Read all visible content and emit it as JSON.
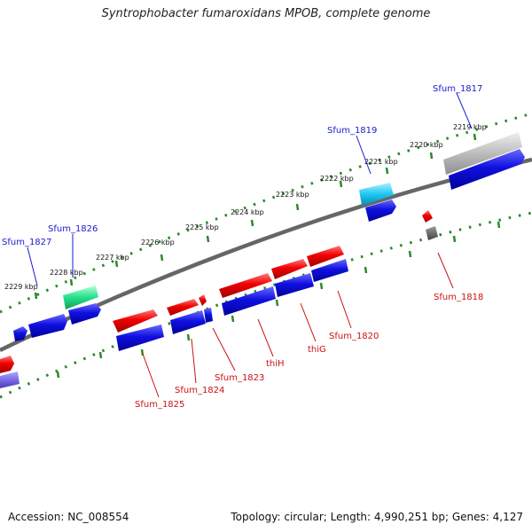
{
  "title": "Syntrophobacter fumaroxidans MPOB, complete genome",
  "footer": {
    "accession": "Accession: NC_008554",
    "topology": "Topology: circular; Length: 4,990,251 bp; Genes: 4,127"
  },
  "colors": {
    "backbone": "#666666",
    "ticks": "#2a8a2a",
    "blue_gene": "#0b12d8",
    "red_gene": "#ee0a0a",
    "label_blue": "#1a1ad0",
    "label_red": "#cc1111"
  },
  "scale_labels": [
    "2229 kbp",
    "2228 kbp",
    "2227 kbp",
    "2226 kbp",
    "2225 kbp",
    "2224 kbp",
    "2223 kbp",
    "2222 kbp",
    "2221 kbp",
    "2220 kbp",
    "2219 kbp"
  ],
  "gene_labels_top": [
    "Sfum_1827",
    "Sfum_1826",
    "Sfum_1819",
    "Sfum_1817"
  ],
  "gene_labels_bottom": [
    "Sfum_1825",
    "Sfum_1824",
    "Sfum_1823",
    "thiH",
    "thiG",
    "Sfum_1820",
    "Sfum_1818"
  ]
}
